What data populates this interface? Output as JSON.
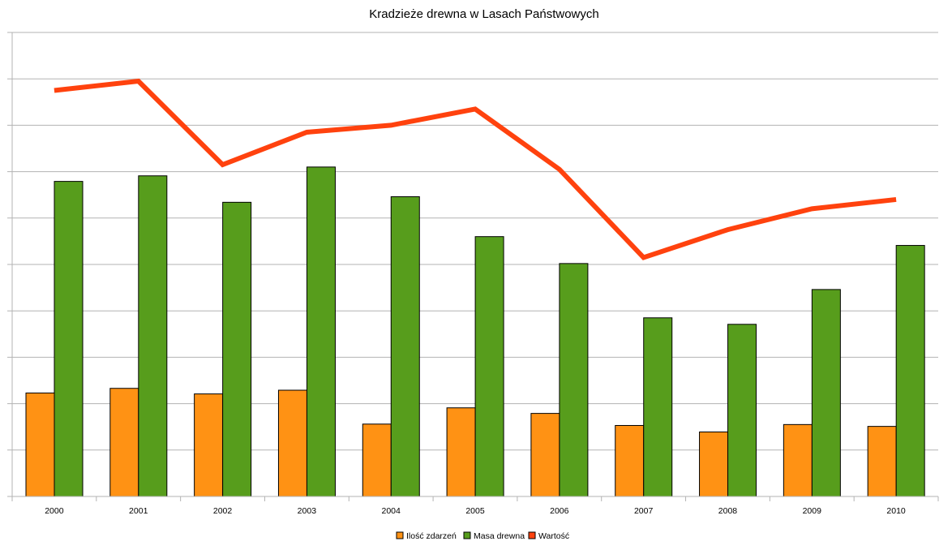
{
  "chart_data": {
    "type": "bar",
    "title": "Kradzieże drewna w Lasach Państwowych",
    "xlabel": "",
    "ylabel": "",
    "categories": [
      "2000",
      "2001",
      "2002",
      "2003",
      "2004",
      "2005",
      "2006",
      "2007",
      "2008",
      "2009",
      "2010"
    ],
    "ylim": [
      0,
      10
    ],
    "y_ticks_labeled": false,
    "grid": true,
    "legend_position": "bottom",
    "series": [
      {
        "name": "Ilość zdarzeń",
        "type": "bar",
        "color": "#ff9214",
        "values": [
          2.23,
          2.33,
          2.21,
          2.29,
          1.56,
          1.91,
          1.79,
          1.53,
          1.39,
          1.55,
          1.51
        ]
      },
      {
        "name": "Masa drewna",
        "type": "bar",
        "color": "#579d1c",
        "values": [
          6.79,
          6.91,
          6.34,
          7.1,
          6.46,
          5.6,
          5.02,
          3.85,
          3.71,
          4.46,
          5.41
        ]
      },
      {
        "name": "Wartość",
        "type": "line",
        "color": "#ff420e",
        "values": [
          8.75,
          8.95,
          7.15,
          7.85,
          8.0,
          8.35,
          7.05,
          5.15,
          5.75,
          6.2,
          6.4
        ]
      }
    ]
  }
}
